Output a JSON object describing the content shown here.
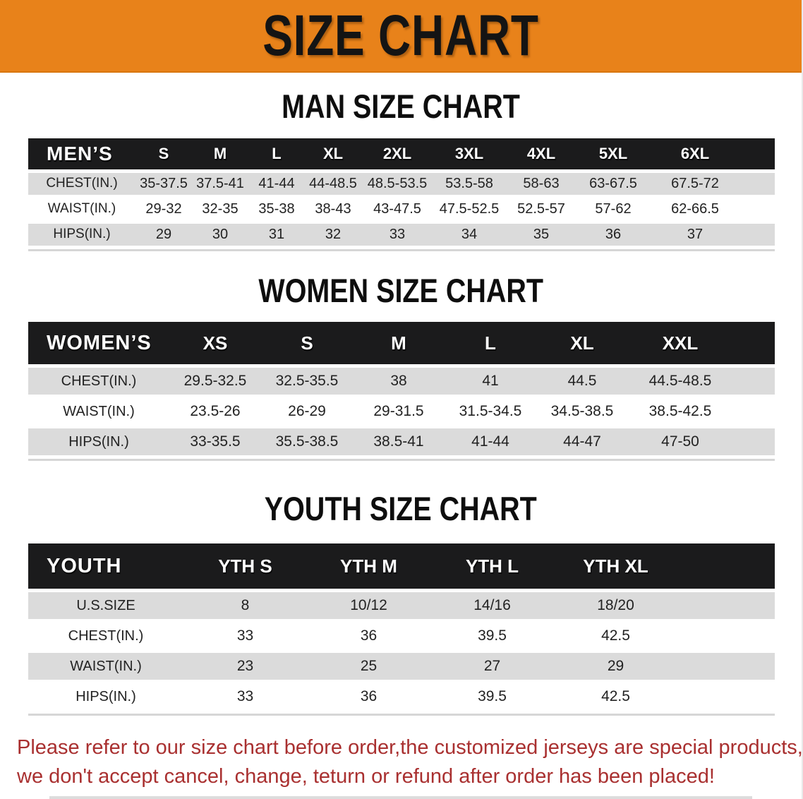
{
  "banner": {
    "title": "SIZE CHART"
  },
  "men": {
    "section_title": "MAN SIZE CHART",
    "header": [
      "MEN’S",
      "S",
      "M",
      "L",
      "XL",
      "2XL",
      "3XL",
      "4XL",
      "5XL",
      "6XL"
    ],
    "rows": [
      {
        "label": "CHEST(IN.)",
        "values": [
          "35-37.5",
          "37.5-41",
          "41-44",
          "44-48.5",
          "48.5-53.5",
          "53.5-58",
          "58-63",
          "63-67.5",
          "67.5-72"
        ]
      },
      {
        "label": "WAIST(IN.)",
        "values": [
          "29-32",
          "32-35",
          "35-38",
          "38-43",
          "43-47.5",
          "47.5-52.5",
          "52.5-57",
          "57-62",
          "62-66.5"
        ]
      },
      {
        "label": "HIPS(IN.)",
        "values": [
          "29",
          "30",
          "31",
          "32",
          "33",
          "34",
          "35",
          "36",
          "37"
        ]
      }
    ]
  },
  "women": {
    "section_title": "WOMEN SIZE CHART",
    "header": [
      "WOMEN’S",
      "XS",
      "S",
      "M",
      "L",
      "XL",
      "XXL"
    ],
    "rows": [
      {
        "label": "CHEST(IN.)",
        "values": [
          "29.5-32.5",
          "32.5-35.5",
          "38",
          "41",
          "44.5",
          "44.5-48.5"
        ]
      },
      {
        "label": "WAIST(IN.)",
        "values": [
          "23.5-26",
          "26-29",
          "29-31.5",
          "31.5-34.5",
          "34.5-38.5",
          "38.5-42.5"
        ]
      },
      {
        "label": "HIPS(IN.)",
        "values": [
          "33-35.5",
          "35.5-38.5",
          "38.5-41",
          "41-44",
          "44-47",
          "47-50"
        ]
      }
    ]
  },
  "youth": {
    "section_title": "YOUTH SIZE CHART",
    "header": [
      "YOUTH",
      "YTH S",
      "YTH M",
      "YTH L",
      "YTH XL"
    ],
    "rows": [
      {
        "label": "U.S.SIZE",
        "values": [
          "8",
          "10/12",
          "14/16",
          "18/20"
        ]
      },
      {
        "label": "CHEST(IN.)",
        "values": [
          "33",
          "36",
          "39.5",
          "42.5"
        ]
      },
      {
        "label": "WAIST(IN.)",
        "values": [
          "23",
          "25",
          "27",
          "29"
        ]
      },
      {
        "label": "HIPS(IN.)",
        "values": [
          "33",
          "36",
          "39.5",
          "42.5"
        ]
      }
    ]
  },
  "note": {
    "line1": "Please refer to our size chart before order,the customized jerseys are special products,",
    "line2": "we don't accept cancel, change, teturn or refund after order has been placed!"
  },
  "colors": {
    "banner_bg": "#E8821A",
    "header_bar": "#1B1B1C",
    "row_alt": "#DBDBDB",
    "note_red": "#A93030"
  }
}
